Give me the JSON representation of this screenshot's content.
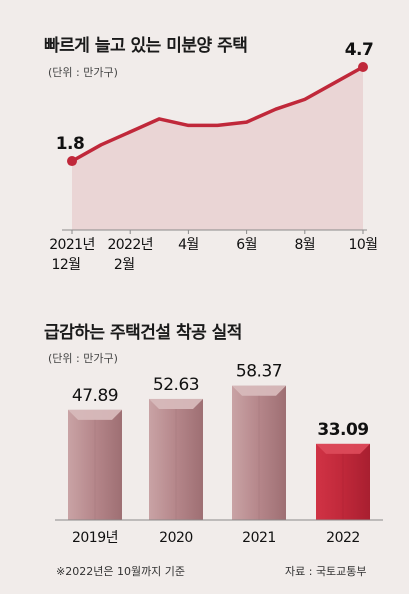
{
  "chart_data": [
    {
      "type": "area",
      "title": "빠르게 늘고 있는 미분양 주택",
      "unit_label": "(단위 : 만가구)",
      "x": [
        "2021-12",
        "2022-01",
        "2022-02",
        "2022-03",
        "2022-04",
        "2022-05",
        "2022-06",
        "2022-07",
        "2022-08",
        "2022-09",
        "2022-10"
      ],
      "values": [
        1.8,
        2.3,
        2.7,
        3.1,
        2.9,
        2.9,
        3.0,
        3.4,
        3.7,
        4.2,
        4.7
      ],
      "tick_labels": [
        {
          "index": 0,
          "line1": "2021년",
          "line2": "12월"
        },
        {
          "index": 2,
          "line1": "2022년",
          "line2": "2월"
        },
        {
          "index": 4,
          "line1": "4월",
          "line2": ""
        },
        {
          "index": 6,
          "line1": "6월",
          "line2": ""
        },
        {
          "index": 8,
          "line1": "8월",
          "line2": ""
        },
        {
          "index": 10,
          "line1": "10월",
          "line2": ""
        }
      ],
      "data_labels": [
        {
          "index": 0,
          "text": "1.8"
        },
        {
          "index": 10,
          "text": "4.7"
        }
      ],
      "ylim": [
        0,
        5
      ],
      "grid": false,
      "colors": {
        "line": "#c0283a",
        "fill": "#e9d3d3"
      }
    },
    {
      "type": "bar",
      "title": "급감하는 주택건설 착공 실적",
      "unit_label": "(단위 : 만가구)",
      "categories": [
        "2019년",
        "2020",
        "2021",
        "2022"
      ],
      "values": [
        47.89,
        52.63,
        58.37,
        33.09
      ],
      "value_labels": [
        "47.89",
        "52.63",
        "58.37",
        "33.09"
      ],
      "ylim": [
        0,
        60
      ],
      "grid": false,
      "highlight_index": 3,
      "colors": {
        "bar": "#b98a8d",
        "highlight": "#c0283a"
      }
    }
  ],
  "footnote": "※2022년은 10월까지 기준",
  "source": "자료 : 국토교통부"
}
